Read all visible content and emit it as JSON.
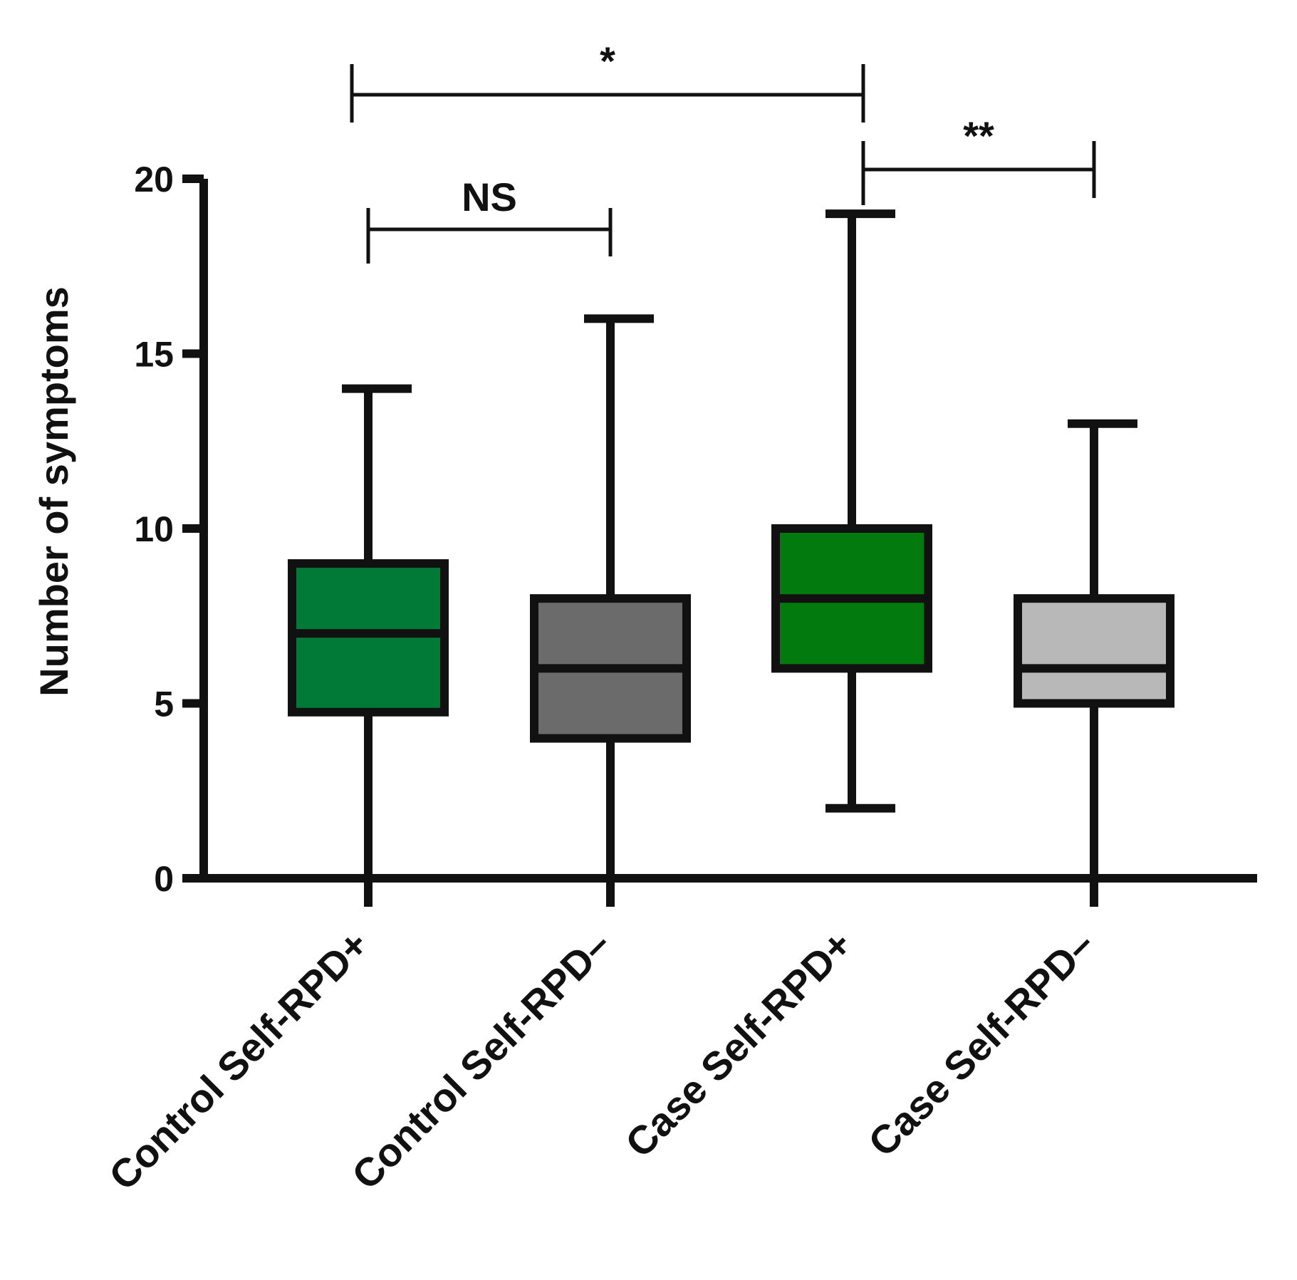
{
  "chart_data": {
    "type": "box",
    "title": "",
    "ylabel": "Number of symptoms",
    "xlabel": "",
    "ylim": [
      0,
      20
    ],
    "yticks": [
      0,
      5,
      10,
      15,
      20
    ],
    "categories": [
      "Control Self-RPD+",
      "Control Self-RPD–",
      "Case Self-RPD+",
      "Case Self-RPD–"
    ],
    "boxes": [
      {
        "min": 0,
        "q1": 4.75,
        "median": 7,
        "q3": 9,
        "max": 14,
        "color": "#027a37"
      },
      {
        "min": 0,
        "q1": 4,
        "median": 6,
        "q3": 8,
        "max": 16,
        "color": "#6b6b6b"
      },
      {
        "min": 2,
        "q1": 6,
        "median": 8,
        "q3": 10,
        "max": 19,
        "color": "#037a0d"
      },
      {
        "min": 0,
        "q1": 5,
        "median": 6,
        "q3": 8,
        "max": 13,
        "color": "#b8b8b8"
      }
    ],
    "significance": [
      {
        "from": 0,
        "to": 1,
        "label": "NS"
      },
      {
        "from": 0,
        "to": 2,
        "label": "*"
      },
      {
        "from": 2,
        "to": 3,
        "label": "**"
      }
    ],
    "grid": false,
    "legend": "none"
  }
}
